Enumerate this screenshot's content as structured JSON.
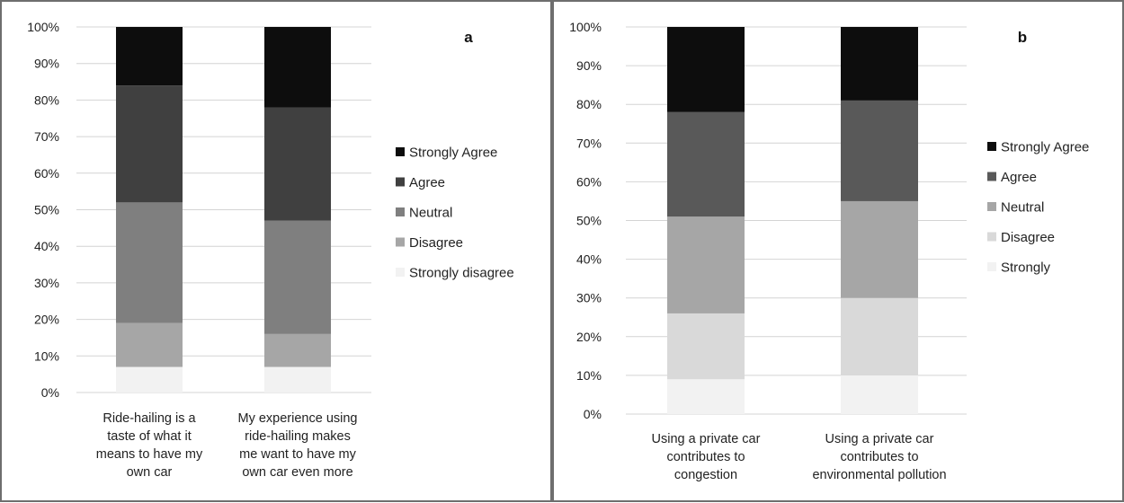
{
  "chart_data": [
    {
      "type": "bar",
      "stacked": true,
      "panel_label": "a",
      "title": "",
      "xlabel": "",
      "ylabel": "",
      "ylim": [
        0,
        100
      ],
      "y_ticks": [
        "0%",
        "10%",
        "20%",
        "30%",
        "40%",
        "50%",
        "60%",
        "70%",
        "80%",
        "90%",
        "100%"
      ],
      "grid": true,
      "legend_position": "right",
      "categories": [
        [
          "Ride-hailing is a",
          "taste of what it",
          "means to have my",
          "own car"
        ],
        [
          "My experience using",
          "ride-hailing makes",
          "me want to have my",
          "own car even more"
        ]
      ],
      "series": [
        {
          "name": "Strongly  disagree",
          "color": "#f2f2f2",
          "values": [
            7,
            7
          ]
        },
        {
          "name": "Disagree",
          "color": "#a6a6a6",
          "values": [
            12,
            9
          ]
        },
        {
          "name": "Neutral",
          "color": "#7f7f7f",
          "values": [
            33,
            31
          ]
        },
        {
          "name": "Agree",
          "color": "#404040",
          "values": [
            32,
            31
          ]
        },
        {
          "name": "Strongly Agree",
          "color": "#0d0d0d",
          "values": [
            16,
            22
          ]
        }
      ]
    },
    {
      "type": "bar",
      "stacked": true,
      "panel_label": "b",
      "title": "",
      "xlabel": "",
      "ylabel": "",
      "ylim": [
        0,
        100
      ],
      "y_ticks": [
        "0%",
        "10%",
        "20%",
        "30%",
        "40%",
        "50%",
        "60%",
        "70%",
        "80%",
        "90%",
        "100%"
      ],
      "grid": true,
      "legend_position": "right",
      "categories": [
        [
          "Using a private car",
          "contributes to",
          "congestion"
        ],
        [
          "Using a private car",
          "contributes to",
          "environmental pollution"
        ]
      ],
      "series": [
        {
          "name": "Strongly",
          "color": "#f2f2f2",
          "values": [
            9,
            10
          ]
        },
        {
          "name": "Disagree",
          "color": "#d9d9d9",
          "values": [
            17,
            20
          ]
        },
        {
          "name": "Neutral",
          "color": "#a6a6a6",
          "values": [
            25,
            25
          ]
        },
        {
          "name": "Agree",
          "color": "#595959",
          "values": [
            27,
            26
          ]
        },
        {
          "name": "Strongly Agree",
          "color": "#0d0d0d",
          "values": [
            22,
            19
          ]
        }
      ]
    }
  ]
}
